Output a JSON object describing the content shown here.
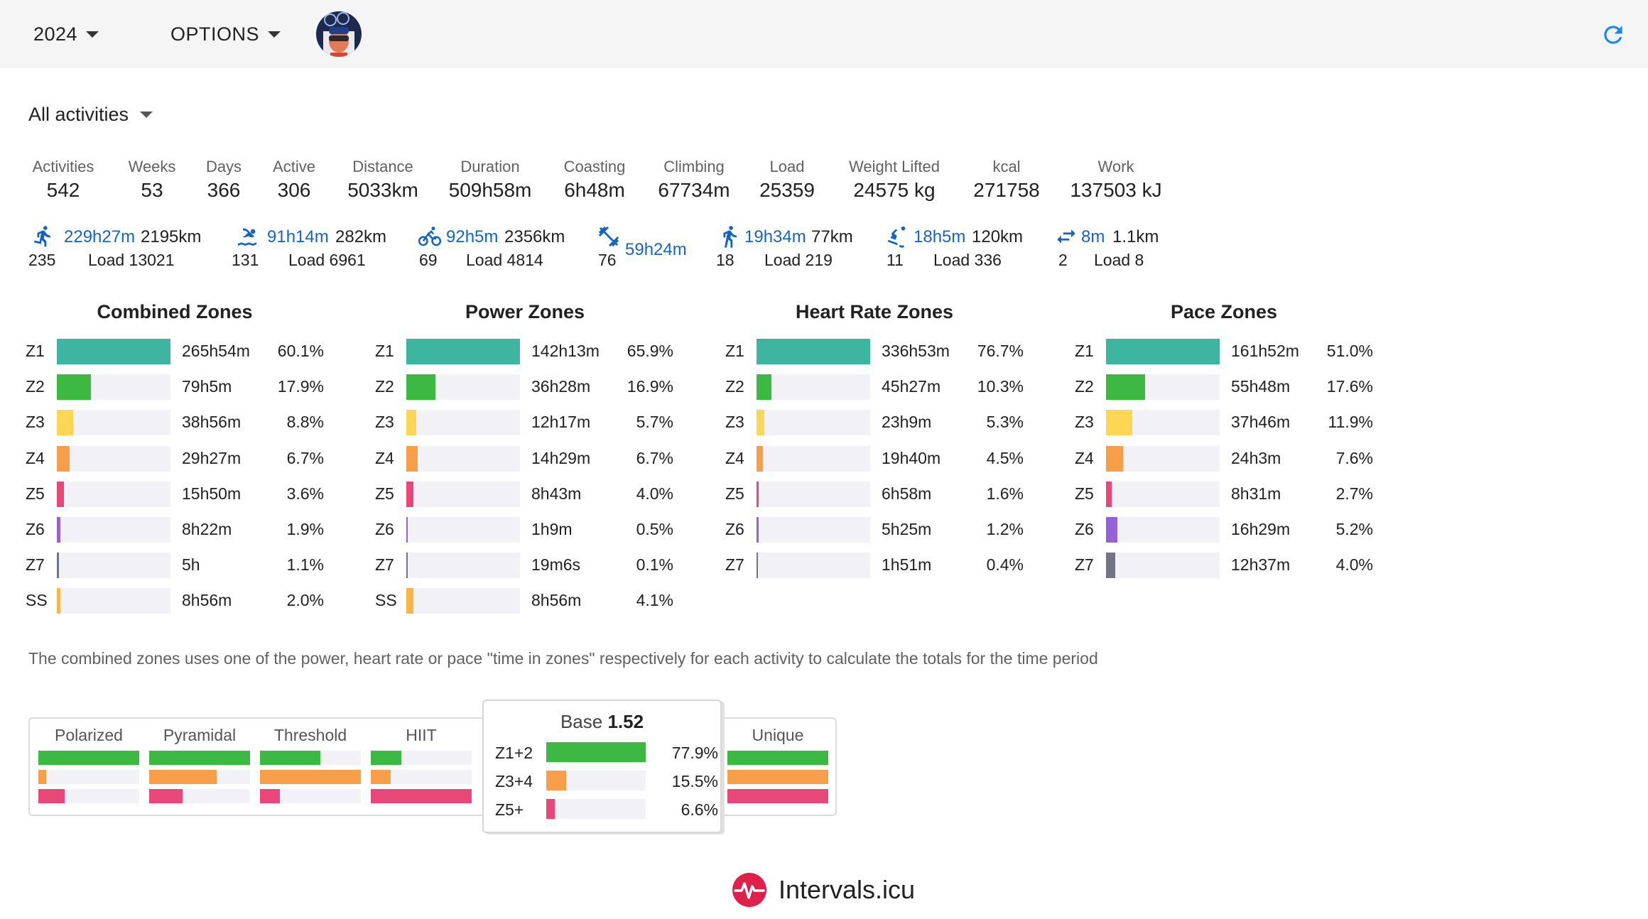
{
  "toolbar": {
    "year": "2024",
    "options": "OPTIONS"
  },
  "filter": {
    "label": "All activities"
  },
  "stats": [
    {
      "label": "Activities",
      "value": "542"
    },
    {
      "label": "Weeks",
      "value": "53"
    },
    {
      "label": "Days",
      "value": "366"
    },
    {
      "label": "Active",
      "value": "306"
    },
    {
      "label": "Distance",
      "value": "5033km"
    },
    {
      "label": "Duration",
      "value": "509h58m"
    },
    {
      "label": "Coasting",
      "value": "6h48m"
    },
    {
      "label": "Climbing",
      "value": "67734m"
    },
    {
      "label": "Load",
      "value": "25359"
    },
    {
      "label": "Weight Lifted",
      "value": "24575 kg"
    },
    {
      "label": "kcal",
      "value": "271758"
    },
    {
      "label": "Work",
      "value": "137503 kJ"
    }
  ],
  "sports": [
    {
      "icon": "run-icon",
      "duration": "229h27m",
      "distance": "2195km",
      "count": "235",
      "load": "Load 13021"
    },
    {
      "icon": "swim-icon",
      "duration": "91h14m",
      "distance": "282km",
      "count": "131",
      "load": "Load 6961"
    },
    {
      "icon": "bike-icon",
      "duration": "92h5m",
      "distance": "2356km",
      "count": "69",
      "load": "Load 4814"
    },
    {
      "icon": "weight-training-icon",
      "duration": "59h24m",
      "distance": "",
      "count": "76",
      "load": ""
    },
    {
      "icon": "walk-icon",
      "duration": "19h34m",
      "distance": "77km",
      "count": "18",
      "load": "Load 219"
    },
    {
      "icon": "ski-icon",
      "duration": "18h5m",
      "distance": "120km",
      "count": "11",
      "load": "Load 336"
    },
    {
      "icon": "transition-icon",
      "duration": "8m",
      "distance": "1.1km",
      "count": "2",
      "load": "Load 8"
    }
  ],
  "colors": {
    "Z1": "#3db5a0",
    "Z2": "#3cb843",
    "Z3": "#fdd753",
    "Z4": "#f79e4b",
    "Z5": "#e8477a",
    "Z6": "#9361d8",
    "Z7": "#737386",
    "SS": "#f8b648",
    "link": "#1565c0",
    "brand": "#e0204a"
  },
  "zone_tables": [
    {
      "title": "Combined Zones",
      "rows": [
        {
          "zone": "Z1",
          "time": "265h54m",
          "pct": "60.1%",
          "share": 0.601
        },
        {
          "zone": "Z2",
          "time": "79h5m",
          "pct": "17.9%",
          "share": 0.179
        },
        {
          "zone": "Z3",
          "time": "38h56m",
          "pct": "8.8%",
          "share": 0.088
        },
        {
          "zone": "Z4",
          "time": "29h27m",
          "pct": "6.7%",
          "share": 0.067
        },
        {
          "zone": "Z5",
          "time": "15h50m",
          "pct": "3.6%",
          "share": 0.036
        },
        {
          "zone": "Z6",
          "time": "8h22m",
          "pct": "1.9%",
          "share": 0.019
        },
        {
          "zone": "Z7",
          "time": "5h",
          "pct": "1.1%",
          "share": 0.011
        },
        {
          "zone": "SS",
          "time": "8h56m",
          "pct": "2.0%",
          "share": 0.02
        }
      ]
    },
    {
      "title": "Power Zones",
      "rows": [
        {
          "zone": "Z1",
          "time": "142h13m",
          "pct": "65.9%",
          "share": 0.659
        },
        {
          "zone": "Z2",
          "time": "36h28m",
          "pct": "16.9%",
          "share": 0.169
        },
        {
          "zone": "Z3",
          "time": "12h17m",
          "pct": "5.7%",
          "share": 0.057
        },
        {
          "zone": "Z4",
          "time": "14h29m",
          "pct": "6.7%",
          "share": 0.067
        },
        {
          "zone": "Z5",
          "time": "8h43m",
          "pct": "4.0%",
          "share": 0.04
        },
        {
          "zone": "Z6",
          "time": "1h9m",
          "pct": "0.5%",
          "share": 0.005
        },
        {
          "zone": "Z7",
          "time": "19m6s",
          "pct": "0.1%",
          "share": 0.001
        },
        {
          "zone": "SS",
          "time": "8h56m",
          "pct": "4.1%",
          "share": 0.041
        }
      ]
    },
    {
      "title": "Heart Rate Zones",
      "rows": [
        {
          "zone": "Z1",
          "time": "336h53m",
          "pct": "76.7%",
          "share": 0.767
        },
        {
          "zone": "Z2",
          "time": "45h27m",
          "pct": "10.3%",
          "share": 0.103
        },
        {
          "zone": "Z3",
          "time": "23h9m",
          "pct": "5.3%",
          "share": 0.053
        },
        {
          "zone": "Z4",
          "time": "19h40m",
          "pct": "4.5%",
          "share": 0.045
        },
        {
          "zone": "Z5",
          "time": "6h58m",
          "pct": "1.6%",
          "share": 0.016
        },
        {
          "zone": "Z6",
          "time": "5h25m",
          "pct": "1.2%",
          "share": 0.012
        },
        {
          "zone": "Z7",
          "time": "1h51m",
          "pct": "0.4%",
          "share": 0.004
        }
      ]
    },
    {
      "title": "Pace Zones",
      "rows": [
        {
          "zone": "Z1",
          "time": "161h52m",
          "pct": "51.0%",
          "share": 0.51
        },
        {
          "zone": "Z2",
          "time": "55h48m",
          "pct": "17.6%",
          "share": 0.176
        },
        {
          "zone": "Z3",
          "time": "37h46m",
          "pct": "11.9%",
          "share": 0.119
        },
        {
          "zone": "Z4",
          "time": "24h3m",
          "pct": "7.6%",
          "share": 0.076
        },
        {
          "zone": "Z5",
          "time": "8h31m",
          "pct": "2.7%",
          "share": 0.027
        },
        {
          "zone": "Z6",
          "time": "16h29m",
          "pct": "5.2%",
          "share": 0.052
        },
        {
          "zone": "Z7",
          "time": "12h37m",
          "pct": "4.0%",
          "share": 0.04
        }
      ]
    }
  ],
  "note": "The combined zones uses one of the power, heart rate or pace \"time in zones\" respectively for each activity to calculate the totals for the time period",
  "distribution": {
    "types": [
      {
        "name": "Polarized",
        "levels": [
          1.0,
          0.08,
          0.26
        ]
      },
      {
        "name": "Pyramidal",
        "levels": [
          1.0,
          0.67,
          0.33
        ]
      },
      {
        "name": "Threshold",
        "levels": [
          0.6,
          1.0,
          0.2
        ]
      },
      {
        "name": "HIIT",
        "levels": [
          0.3,
          0.2,
          1.0
        ]
      },
      {
        "name": "Unique",
        "levels": [
          1.0,
          1.0,
          1.0
        ]
      }
    ],
    "colors": [
      "#3cb843",
      "#f79e4b",
      "#e8477a"
    ],
    "popup": {
      "label": "Base",
      "value": "1.52",
      "rows": [
        {
          "label": "Z1+2",
          "pct": "77.9%",
          "share": 0.779
        },
        {
          "label": "Z3+4",
          "pct": "15.5%",
          "share": 0.155
        },
        {
          "label": "Z5+",
          "pct": "6.6%",
          "share": 0.066
        }
      ]
    }
  },
  "footer": {
    "brand": "Intervals.icu"
  }
}
